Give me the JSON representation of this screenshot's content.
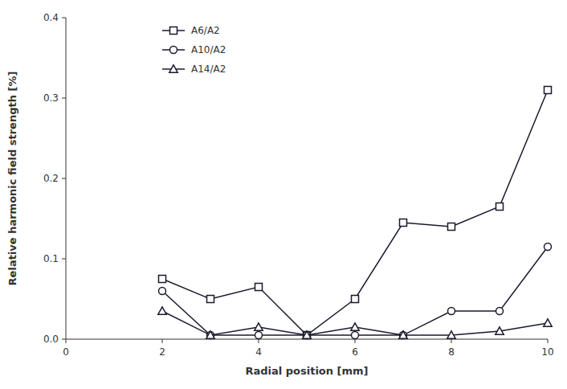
{
  "chart_data": {
    "type": "line",
    "x": [
      2,
      3,
      4,
      5,
      6,
      7,
      8,
      9,
      10
    ],
    "series": [
      {
        "name": "A6/A2",
        "color": "#1a1a2e",
        "marker": "square",
        "values": [
          0.075,
          0.05,
          0.065,
          0.005,
          0.05,
          0.145,
          0.14,
          0.165,
          0.31
        ]
      },
      {
        "name": "A10/A2",
        "color": "#1a1a2e",
        "marker": "circle",
        "values": [
          0.06,
          0.005,
          0.005,
          0.005,
          0.005,
          0.005,
          0.035,
          0.035,
          0.115
        ]
      },
      {
        "name": "A14/A2",
        "color": "#1a1a2e",
        "marker": "triangle",
        "values": [
          0.035,
          0.005,
          0.015,
          0.005,
          0.015,
          0.005,
          0.005,
          0.01,
          0.02
        ]
      }
    ],
    "xlabel": "Radial position [mm]",
    "ylabel": "Relative harmonic field strength [%]",
    "xlim": [
      0,
      10
    ],
    "ylim": [
      0,
      0.4
    ],
    "xticks": [
      0,
      2,
      4,
      6,
      8,
      10
    ],
    "yticks": [
      {
        "value": 0.0,
        "label": "0.0"
      },
      0.1,
      0.2,
      0.3,
      0.4
    ],
    "grid": false,
    "legend": "upper left"
  }
}
